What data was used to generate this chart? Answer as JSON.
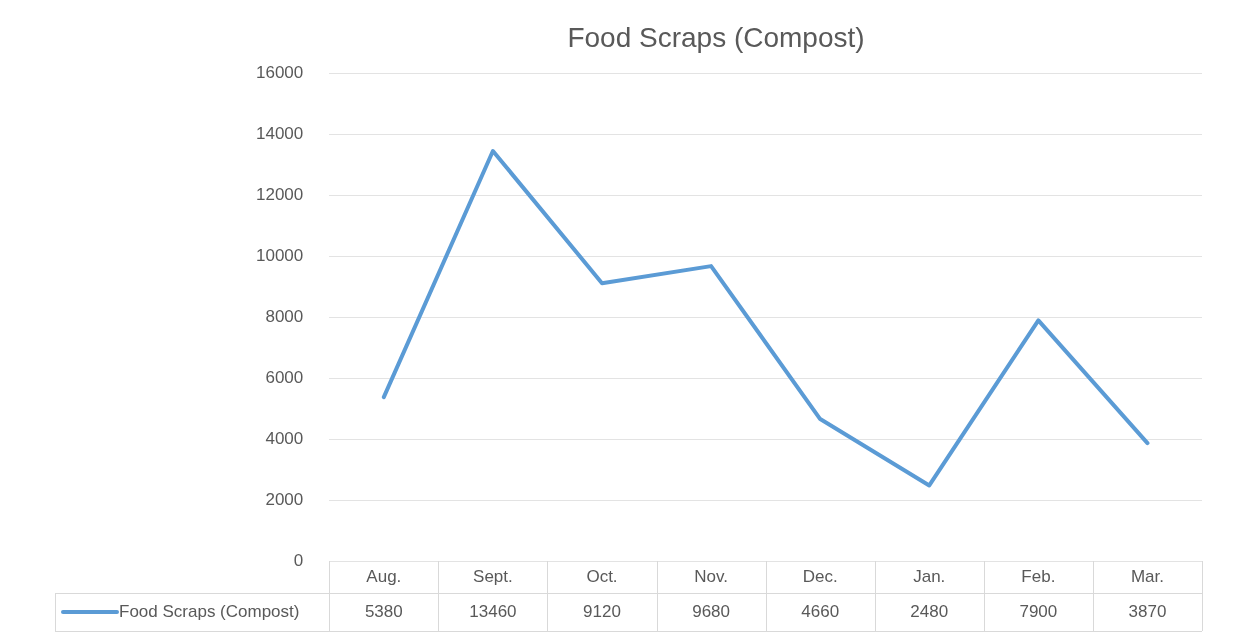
{
  "chart_data": {
    "type": "line",
    "title": "Food Scraps (Compost)",
    "categories": [
      "Aug.",
      "Sept.",
      "Oct.",
      "Nov.",
      "Dec.",
      "Jan.",
      "Feb.",
      "Mar."
    ],
    "series": [
      {
        "name": "Food Scraps (Compost)",
        "color": "#5b9bd5",
        "values": [
          5380,
          13460,
          9120,
          9680,
          4660,
          2480,
          7900,
          3870
        ]
      }
    ],
    "ylim": [
      0,
      16000
    ],
    "yticks": [
      0,
      2000,
      4000,
      6000,
      8000,
      10000,
      12000,
      14000,
      16000
    ],
    "grid": "y",
    "legend": "bottom",
    "data_labels": true,
    "marker": "none",
    "line_style": "solid"
  }
}
